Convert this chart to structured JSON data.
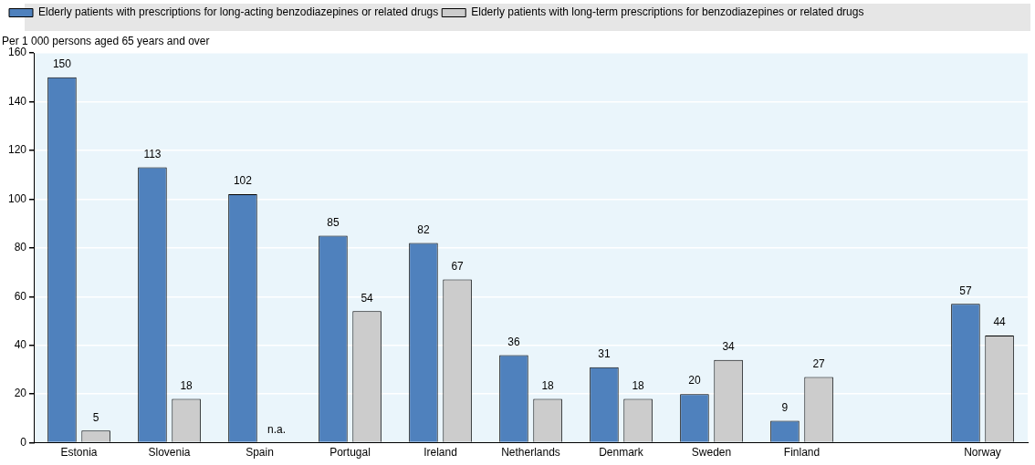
{
  "chart_data": {
    "type": "bar",
    "ylabel": "Per 1 000 persons aged 65 years and over",
    "categories": [
      "Estonia",
      "Slovenia",
      "Spain",
      "Portugal",
      "Ireland",
      "Netherlands",
      "Denmark",
      "Sweden",
      "Finland",
      null,
      "Norway"
    ],
    "series": [
      {
        "name": "Elderly patients with prescriptions for long-acting benzodiazepines or related drugs",
        "color": "#4f81bd",
        "values": [
          150,
          113,
          102,
          85,
          82,
          36,
          31,
          20,
          9,
          null,
          57
        ]
      },
      {
        "name": "Elderly patients with long-term prescriptions for benzodiazepines or related drugs",
        "color": "#cccccc",
        "values": [
          5,
          18,
          null,
          54,
          67,
          18,
          18,
          34,
          27,
          null,
          44
        ],
        "value_labels": [
          "5",
          "18",
          "n.a.",
          "54",
          "67",
          "18",
          "18",
          "34",
          "27",
          null,
          "44"
        ]
      }
    ],
    "ylim": [
      0,
      160
    ],
    "yticks": [
      0,
      20,
      40,
      60,
      80,
      100,
      120,
      140,
      160
    ],
    "grid": "y",
    "legend": "top",
    "data_labels": true
  }
}
